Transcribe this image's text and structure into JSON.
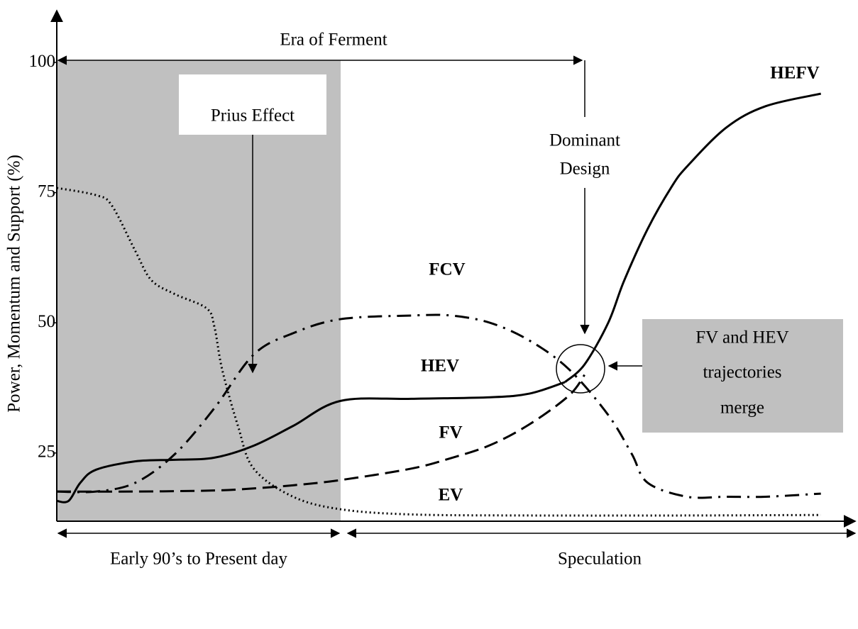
{
  "chart_data": {
    "type": "line",
    "ylabel": "Power, Momentum and Support (%)",
    "ylim": [
      11.9,
      110
    ],
    "yticks": [
      25,
      50,
      75,
      100
    ],
    "xlim": [
      0,
      100
    ],
    "series": [
      {
        "name": "EV",
        "color": "#000000",
        "style": "dotted",
        "x": [
          0,
          5,
          7,
          10,
          12,
          15,
          19,
          20,
          21,
          23,
          25,
          30,
          36,
          45,
          60,
          80,
          97
        ],
        "values": [
          75.9,
          74.5,
          72.5,
          63.7,
          58.2,
          55.5,
          52.8,
          49.3,
          41,
          30.2,
          22,
          16.6,
          14.2,
          13.2,
          13,
          13,
          13.1
        ]
      },
      {
        "name": "HEV",
        "color": "#000000",
        "style": "solid",
        "x": [
          0,
          1.5,
          3,
          5,
          10,
          15,
          20,
          25,
          30,
          36,
          45,
          55,
          60,
          64.5
        ],
        "values": [
          15.8,
          15.8,
          19.3,
          21.8,
          23.4,
          23.7,
          24.1,
          26.4,
          30.2,
          35,
          35.4,
          35.7,
          36.4,
          38.6
        ]
      },
      {
        "name": "HEFV",
        "color": "#000000",
        "style": "solid",
        "x": [
          64.5,
          67,
          70,
          72,
          75,
          78,
          80,
          85,
          90,
          97
        ],
        "values": [
          38.6,
          42,
          50,
          58,
          68,
          76,
          80,
          87.5,
          91.6,
          94
        ]
      },
      {
        "name": "FCV",
        "color": "#000000",
        "style": "dashdot",
        "x": [
          0,
          5,
          10,
          15,
          20,
          25,
          30,
          36,
          45,
          50,
          55,
          60,
          65,
          70,
          73,
          75,
          80,
          85,
          90,
          97
        ],
        "values": [
          17.6,
          17.6,
          19.3,
          24.8,
          33.6,
          43.9,
          48,
          50.7,
          51.4,
          51.4,
          50,
          46.6,
          41.1,
          32.3,
          24.8,
          19.3,
          16.6,
          16.6,
          16.6,
          17.2
        ]
      },
      {
        "name": "FV",
        "color": "#000000",
        "style": "dashed",
        "x": [
          0,
          10,
          20,
          25,
          30,
          36,
          45,
          50,
          55,
          60,
          65,
          67
        ],
        "values": [
          17.6,
          17.6,
          17.8,
          18.2,
          18.8,
          19.8,
          22,
          24,
          26.5,
          30.5,
          36,
          40
        ]
      }
    ],
    "annotations": {
      "era": "Era of Ferment",
      "prius": "Prius Effect",
      "dominant": [
        "Dominant",
        "Design"
      ],
      "merge": [
        "FV and HEV",
        "trajectories",
        "merge"
      ],
      "present": "Early 90’s to Present day",
      "speculation": "Speculation"
    }
  }
}
